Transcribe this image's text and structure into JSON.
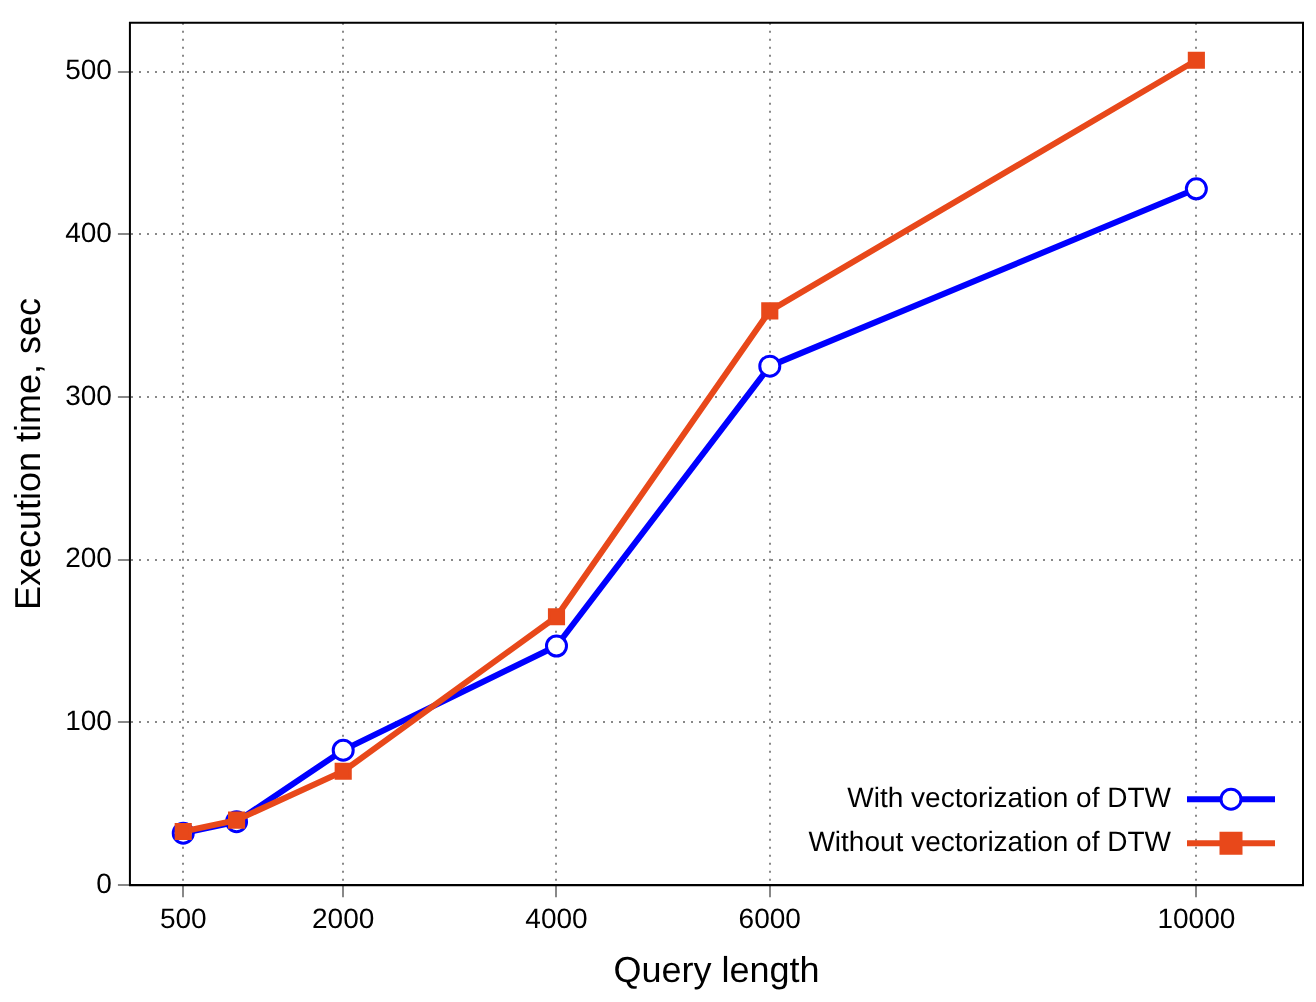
{
  "chart_data": {
    "type": "line",
    "xlabel": "Query length",
    "ylabel": "Execution time, sec",
    "x": [
      500,
      1000,
      2000,
      4000,
      6000,
      10000
    ],
    "series": [
      {
        "name": "With vectorization of DTW",
        "color": "#0000ff",
        "marker": "circle",
        "values": [
          32,
          39,
          83,
          147,
          319,
          428
        ]
      },
      {
        "name": "Without vectorization of DTW",
        "color": "#e8481a",
        "marker": "square",
        "values": [
          33,
          40,
          70,
          165,
          353,
          507
        ]
      }
    ],
    "xlim": [
      0,
      11000
    ],
    "xticks": [
      500,
      2000,
      4000,
      6000,
      10000
    ],
    "ylim": [
      0,
      530
    ],
    "yticks": [
      0,
      100,
      200,
      300,
      400,
      500
    ],
    "grid": true,
    "legend": "bottom right",
    "line_style": "solid"
  }
}
